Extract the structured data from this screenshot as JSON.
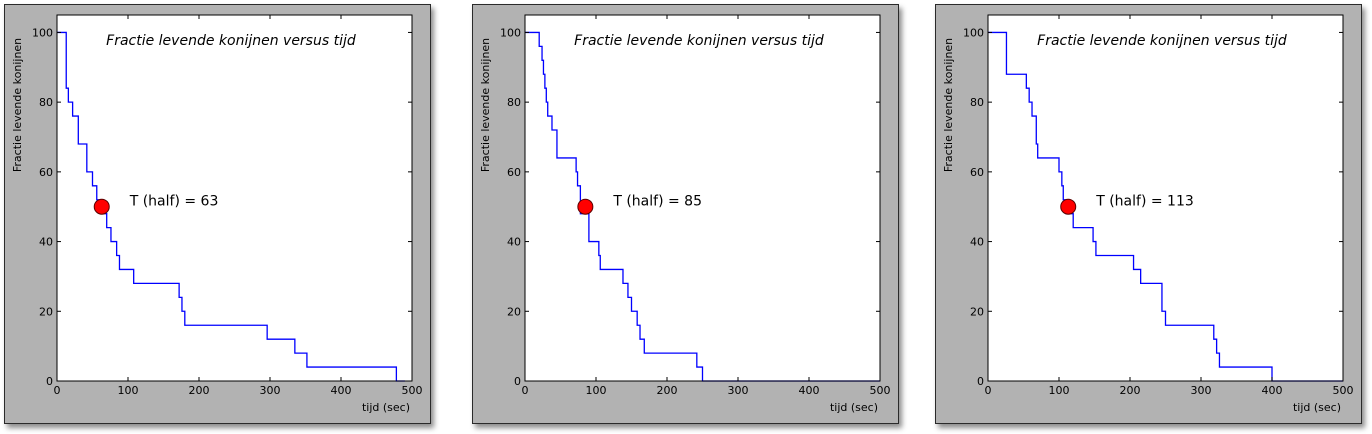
{
  "colors": {
    "line": "#0000ff",
    "marker": "#ff0000",
    "marker_edge": "#5a0000",
    "frame_bg": "#b2b2b2",
    "plot_bg": "#ffffff"
  },
  "chart_data": [
    {
      "type": "line",
      "title": "Fractie levende konijnen versus tijd",
      "xlabel": "tijd (sec)",
      "ylabel": "Fractie levende konijnen",
      "xlim": [
        0,
        500
      ],
      "ylim": [
        0,
        105
      ],
      "xticks": [
        "0",
        "100",
        "200",
        "300",
        "400",
        "500"
      ],
      "yticks": [
        "0",
        "20",
        "40",
        "60",
        "80",
        "100"
      ],
      "grid": false,
      "series": [
        {
          "x": [
            0,
            13,
            16,
            22,
            30,
            42,
            50,
            56,
            64,
            70,
            76,
            84,
            88,
            95,
            108,
            172,
            176,
            180,
            192,
            296,
            335,
            352,
            478,
            490
          ],
          "y": [
            100,
            84,
            80,
            76,
            68,
            60,
            56,
            52,
            48,
            44,
            40,
            36,
            32,
            32,
            28,
            24,
            20,
            16,
            16,
            12,
            8,
            4,
            0,
            0
          ]
        }
      ],
      "marker": {
        "x": 63,
        "y": 50
      },
      "annotation": "T (half) = 63"
    },
    {
      "type": "line",
      "title": "Fractie levende konijnen versus tijd",
      "xlabel": "tijd (sec)",
      "ylabel": "Fractie levende konijnen",
      "xlim": [
        0,
        500
      ],
      "ylim": [
        0,
        105
      ],
      "xticks": [
        "0",
        "100",
        "200",
        "300",
        "400",
        "500"
      ],
      "yticks": [
        "0",
        "20",
        "40",
        "60",
        "80",
        "100"
      ],
      "grid": false,
      "series": [
        {
          "x": [
            0,
            20,
            24,
            26,
            28,
            30,
            32,
            34,
            38,
            45,
            52,
            72,
            74,
            78,
            90,
            100,
            104,
            106,
            138,
            145,
            150,
            158,
            162,
            168,
            242,
            248,
            250,
            260,
            500
          ],
          "y": [
            100,
            96,
            92,
            88,
            84,
            80,
            76,
            76,
            72,
            64,
            64,
            60,
            56,
            48,
            40,
            40,
            36,
            32,
            28,
            24,
            20,
            16,
            12,
            8,
            4,
            4,
            0,
            0,
            0
          ]
        }
      ],
      "marker": {
        "x": 85,
        "y": 50
      },
      "annotation": "T (half) = 85"
    },
    {
      "type": "line",
      "title": "Fractie levende konijnen versus tijd",
      "xlabel": "tijd (sec)",
      "ylabel": "Fractie levende konijnen",
      "xlim": [
        0,
        500
      ],
      "ylim": [
        0,
        105
      ],
      "xticks": [
        "0",
        "100",
        "200",
        "300",
        "400",
        "500"
      ],
      "yticks": [
        "0",
        "20",
        "40",
        "60",
        "80",
        "100"
      ],
      "grid": false,
      "series": [
        {
          "x": [
            0,
            26,
            54,
            58,
            62,
            68,
            70,
            72,
            76,
            100,
            104,
            106,
            110,
            116,
            120,
            124,
            148,
            152,
            160,
            205,
            215,
            225,
            245,
            250,
            258,
            318,
            322,
            326,
            330,
            400,
            500
          ],
          "y": [
            100,
            88,
            84,
            80,
            76,
            68,
            64,
            64,
            64,
            60,
            56,
            52,
            48,
            48,
            44,
            44,
            40,
            36,
            36,
            32,
            28,
            28,
            20,
            16,
            16,
            12,
            8,
            4,
            4,
            0,
            0
          ]
        }
      ],
      "marker": {
        "x": 113,
        "y": 50
      },
      "annotation": "T (half) = 113"
    }
  ]
}
